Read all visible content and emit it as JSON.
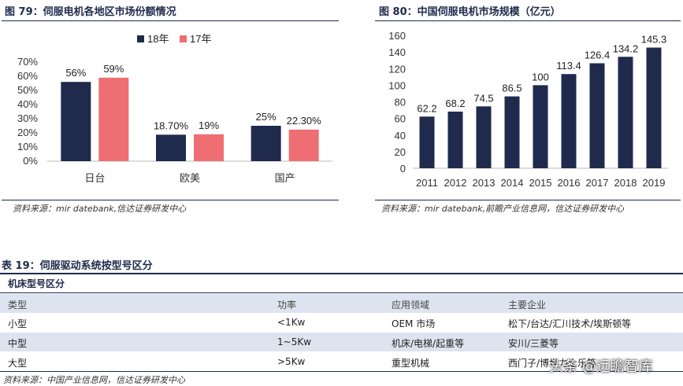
{
  "figure79": {
    "title": "图 79：伺服电机各地区市场份额情况",
    "source": "资料来源：mir datebank,信达证券研发中心"
  },
  "figure80": {
    "title": "图 80：中国伺服电机市场规模（亿元）",
    "source": "资料来源：mir datebank,前瞻产业信息网，信达证券研发中心"
  },
  "chart_data": [
    {
      "type": "bar",
      "title": "",
      "categories": [
        "日台",
        "欧美",
        "国产"
      ],
      "series": [
        {
          "name": "18年",
          "values": [
            56,
            18.7,
            25
          ],
          "labels": [
            "56%",
            "18.70%",
            "25%"
          ],
          "color": "#1f2a4d"
        },
        {
          "name": "17年",
          "values": [
            59,
            19,
            22.3
          ],
          "labels": [
            "59%",
            "19%",
            "22.30%"
          ],
          "color": "#ee6e73"
        }
      ],
      "ylim": [
        0,
        70
      ],
      "yticks": [
        "0%",
        "10%",
        "20%",
        "30%",
        "40%",
        "50%",
        "60%",
        "70%"
      ],
      "legend": "top-center",
      "grid": false
    },
    {
      "type": "bar",
      "title": "",
      "categories": [
        "2011",
        "2012",
        "2013",
        "2014",
        "2015",
        "2016",
        "2017",
        "2018",
        "2019"
      ],
      "series": [
        {
          "values": [
            62.2,
            68.2,
            74.5,
            86.5,
            100,
            113.4,
            126.4,
            134.2,
            145.3
          ],
          "labels": [
            "62.2",
            "68.2",
            "74.5",
            "86.5",
            "100",
            "113.4",
            "126.4",
            "134.2",
            "145.3"
          ],
          "color": "#1f2a4d"
        }
      ],
      "ylim": [
        0,
        160
      ],
      "yticks": [
        "0",
        "20",
        "40",
        "60",
        "80",
        "100",
        "120",
        "140",
        "160"
      ],
      "grid": false
    }
  ],
  "table19": {
    "title": "表 19：伺服驱动系统按型号区分",
    "subtitle": "机床型号区分",
    "headers": [
      "类型",
      "功率",
      "应用领域",
      "主要企业"
    ],
    "rows": [
      [
        "小型",
        "<1Kw",
        "OEM 市场",
        "松下/台达/汇川技术/埃斯顿等"
      ],
      [
        "中型",
        "1~5Kw",
        "机床/电梯/起重等",
        "安川/三菱等"
      ],
      [
        "大型",
        ">5Kw",
        "重型机械",
        "西门子/博世力士乐等"
      ]
    ],
    "source": "资料来源：中国产业信息网，信达证券研发中心"
  },
  "watermark": "头条 @远瞻智库",
  "colors": {
    "navy": "#1f2a4d",
    "pink": "#ee6e73",
    "shade": "#dde4f0"
  }
}
